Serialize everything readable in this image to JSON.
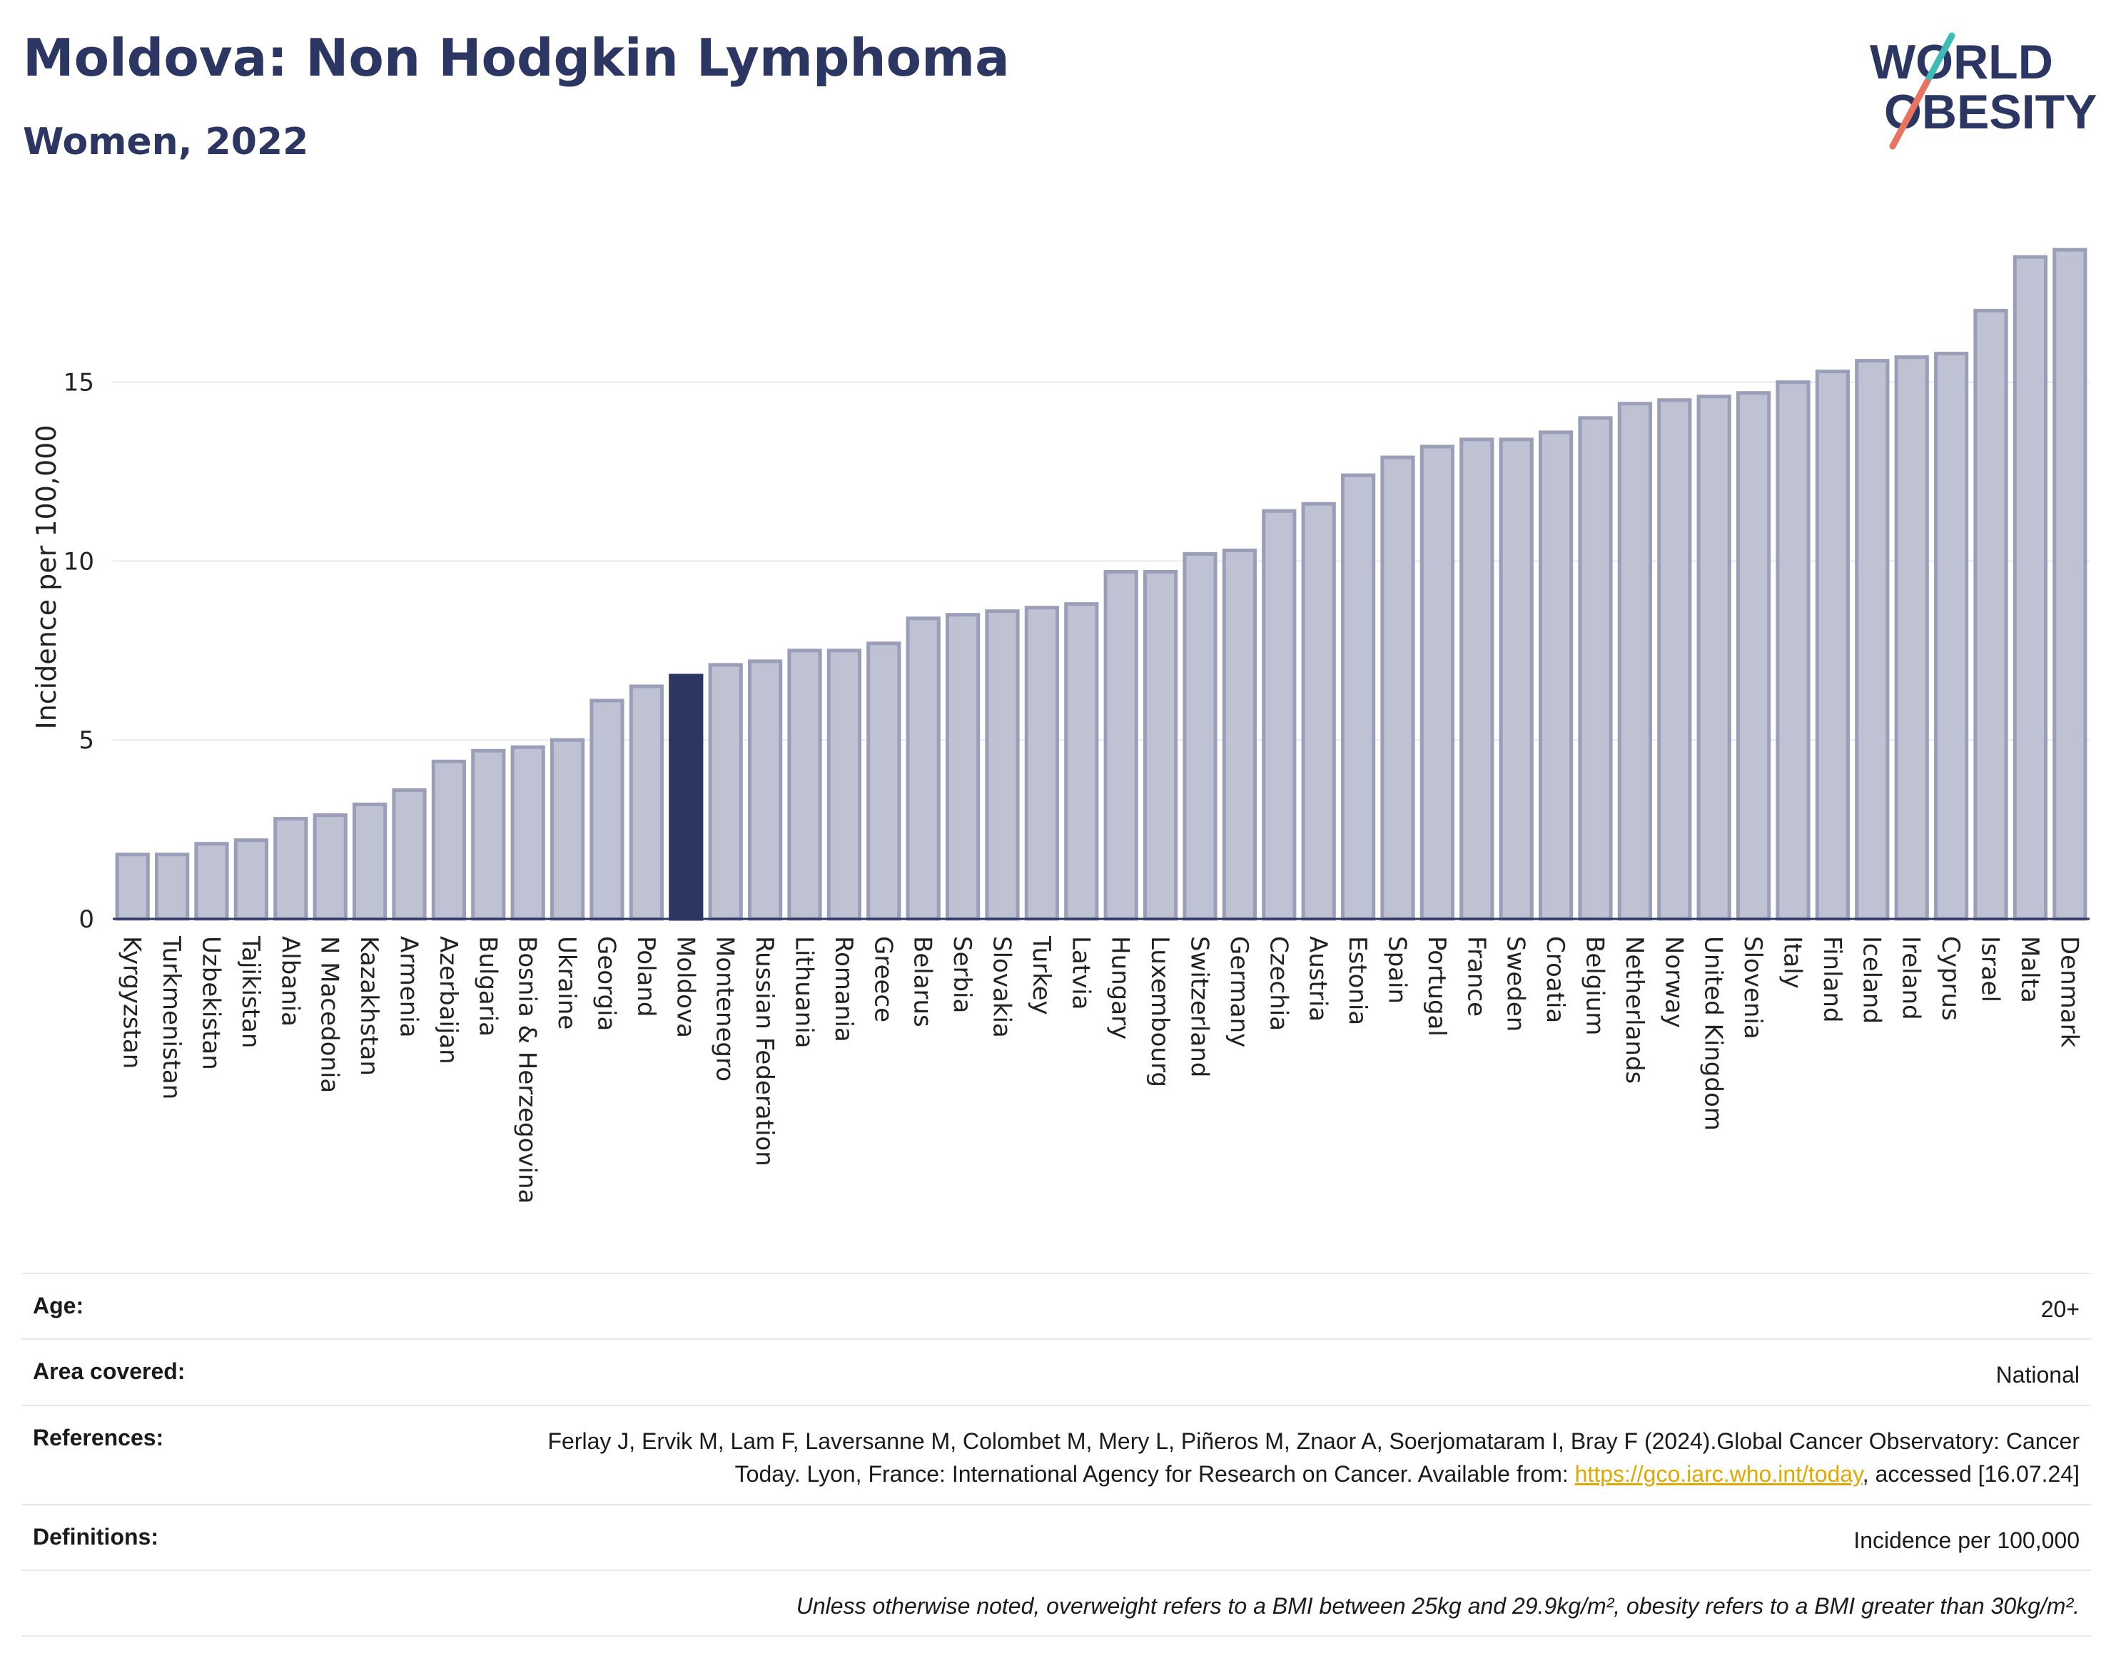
{
  "title": "Moldova: Non Hodgkin Lymphoma",
  "subtitle": "Women, 2022",
  "logo": {
    "line1": "WORLD",
    "line2": "OBESITY"
  },
  "chart_data": {
    "type": "bar",
    "ylabel": "Incidence per 100,000",
    "xlabel": "",
    "ylim": [
      0,
      19.5
    ],
    "yticks": [
      0,
      5,
      10,
      15
    ],
    "highlight": "Moldova",
    "highlight_color": "#2b3663",
    "bar_color": "#bfc2d2",
    "bar_edge_color": "#9a9eb8",
    "categories": [
      "Kyrgyzstan",
      "Turkmenistan",
      "Uzbekistan",
      "Tajikistan",
      "Albania",
      "N Macedonia",
      "Kazakhstan",
      "Armenia",
      "Azerbaijan",
      "Bulgaria",
      "Bosnia & Herzegovina",
      "Ukraine",
      "Georgia",
      "Poland",
      "Moldova",
      "Montenegro",
      "Russian Federation",
      "Lithuania",
      "Romania",
      "Greece",
      "Belarus",
      "Serbia",
      "Slovakia",
      "Turkey",
      "Latvia",
      "Hungary",
      "Luxembourg",
      "Switzerland",
      "Germany",
      "Czechia",
      "Austria",
      "Estonia",
      "Spain",
      "Portugal",
      "France",
      "Sweden",
      "Croatia",
      "Belgium",
      "Netherlands",
      "Norway",
      "United Kingdom",
      "Slovenia",
      "Italy",
      "Finland",
      "Iceland",
      "Ireland",
      "Cyprus",
      "Israel",
      "Malta",
      "Denmark"
    ],
    "values": [
      1.8,
      1.8,
      2.1,
      2.2,
      2.8,
      2.9,
      3.2,
      3.6,
      4.4,
      4.7,
      4.8,
      5.0,
      6.1,
      6.5,
      6.8,
      7.1,
      7.2,
      7.5,
      7.5,
      7.7,
      8.4,
      8.5,
      8.6,
      8.7,
      8.8,
      9.7,
      9.7,
      10.2,
      10.3,
      11.4,
      11.6,
      12.4,
      12.9,
      13.2,
      13.4,
      13.4,
      13.6,
      14.0,
      14.4,
      14.5,
      14.6,
      14.7,
      15.0,
      15.3,
      15.6,
      15.7,
      15.8,
      17.0,
      18.5,
      18.7
    ]
  },
  "meta": {
    "age_label": "Age:",
    "age_value": "20+",
    "area_label": "Area covered:",
    "area_value": "National",
    "ref_label": "References:",
    "ref_text": "Ferlay J, Ervik M, Lam F, Laversanne M, Colombet M, Mery L, Piñeros M, Znaor A, Soerjomataram I, Bray F (2024).Global Cancer Observatory: Cancer Today. Lyon, France: International Agency for Research on Cancer. Available from: ",
    "ref_link": "https://gco.iarc.who.int/today",
    "ref_tail": ", accessed [16.07.24]",
    "def_label": "Definitions:",
    "def_value": "Incidence per 100,000",
    "note": "Unless otherwise noted, overweight refers to a BMI between 25kg and 29.9kg/m², obesity refers to a BMI greater than 30kg/m²."
  }
}
